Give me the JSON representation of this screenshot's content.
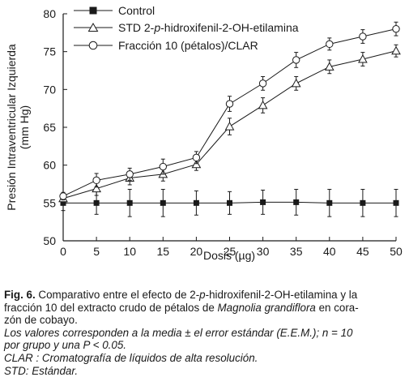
{
  "chart_data": {
    "type": "line",
    "title": "",
    "xlabel": "Dosis (µg)",
    "ylabel_line1": "Presión Intraventricular Izquierda",
    "ylabel_line2": "(mm Hg)",
    "x": [
      0,
      5,
      10,
      15,
      20,
      25,
      30,
      35,
      40,
      45,
      50
    ],
    "xlim": [
      0,
      50
    ],
    "ylim": [
      50,
      80
    ],
    "xticks": [
      "0",
      "5",
      "10",
      "15",
      "20",
      "25",
      "30",
      "35",
      "40",
      "45",
      "50"
    ],
    "yticks": [
      "50",
      "55",
      "60",
      "65",
      "70",
      "75",
      "80"
    ],
    "grid": false,
    "legend_position": "top-left",
    "series": [
      {
        "name": "Control",
        "marker": "filled-square",
        "values": [
          55.0,
          55.0,
          55.0,
          55.0,
          55.0,
          55.0,
          55.1,
          55.1,
          55.0,
          55.0,
          55.0
        ],
        "errors": [
          1.0,
          1.5,
          1.8,
          1.8,
          1.6,
          1.5,
          1.6,
          1.7,
          1.8,
          1.8,
          1.8
        ]
      },
      {
        "name_prefix": "STD 2-",
        "name_italic": "p",
        "name_suffix": "-hidroxifenil-2-OH-etilamina",
        "marker": "open-triangle",
        "values": [
          55.6,
          56.9,
          58.3,
          58.8,
          60.1,
          65.1,
          67.9,
          70.8,
          73.0,
          74.0,
          75.1
        ],
        "errors": [
          0.6,
          0.9,
          0.9,
          0.9,
          0.8,
          1.1,
          1.0,
          0.9,
          0.9,
          0.9,
          0.8
        ]
      },
      {
        "name": "Fracción 10 (pétalos)/CLAR",
        "marker": "open-circle",
        "values": [
          55.9,
          58.0,
          58.8,
          59.8,
          61.0,
          68.1,
          70.8,
          73.9,
          76.0,
          77.0,
          78.0
        ],
        "errors": [
          0.5,
          0.9,
          0.8,
          1.0,
          0.8,
          1.0,
          0.9,
          1.0,
          0.8,
          0.9,
          0.9
        ]
      }
    ]
  },
  "caption": {
    "fig_label": "Fig. 6.",
    "l1_a": " Comparativo entre el efecto de 2-",
    "l1_p": "p",
    "l1_b": "-hidroxifenil-2-OH-etilamina y la",
    "l2_a": "fracción 10 del extracto crudo de pétalos de ",
    "l2_species": "Magnolia grandiflora",
    "l2_b": " en cora-",
    "l3": "zón de cobayo.",
    "l4": "Los valores corresponden a la media ± el error estándar (E.E.M.); n = 10",
    "l5": "por grupo y una P < 0.05.",
    "l6": "CLAR : Cromatografía de líquidos de alta resolución.",
    "l7": "STD: Estándar."
  }
}
